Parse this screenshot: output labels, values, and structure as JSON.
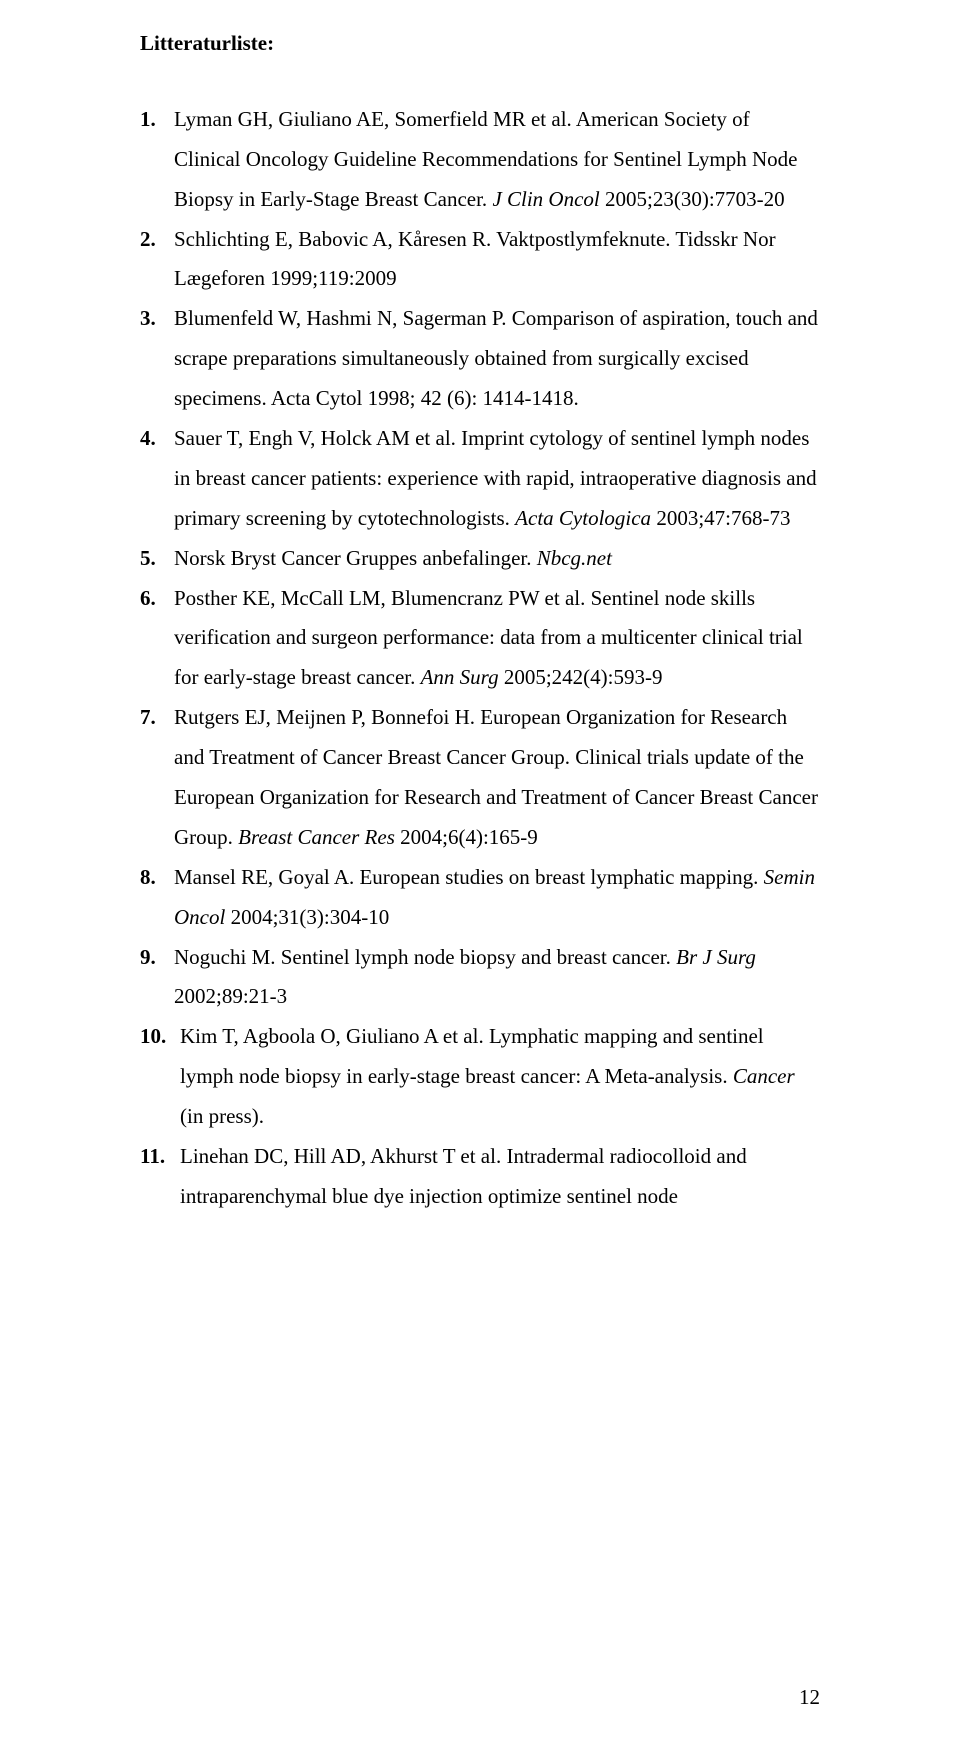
{
  "heading": "Litteraturliste:",
  "references": [
    {
      "n": "1.",
      "parts": [
        {
          "t": "Lyman GH, Giuliano AE, Somerfield MR et al. American Society of Clinical Oncology Guideline Recommendations for Sentinel Lymph Node Biopsy in Early-Stage Breast Cancer. "
        },
        {
          "t": "J Clin Oncol",
          "i": true
        },
        {
          "t": " 2005;23(30):7703-20"
        }
      ]
    },
    {
      "n": "2.",
      "parts": [
        {
          "t": "Schlichting E, Babovic A, Kåresen R. Vaktpostlymfeknute. Tidsskr Nor Lægeforen 1999;119:2009"
        }
      ]
    },
    {
      "n": "3.",
      "parts": [
        {
          "t": "Blumenfeld W, Hashmi N, Sagerman P. Comparison of aspiration, touch and scrape preparations simultaneously obtained from surgically excised specimens. Acta Cytol 1998; 42 (6): 1414-1418."
        }
      ]
    },
    {
      "n": "4.",
      "parts": [
        {
          "t": "Sauer T, Engh V, Holck AM et al. Imprint cytology of sentinel lymph nodes in breast cancer patients: experience with rapid, intraoperative diagnosis and primary screening by cytotechnologists. "
        },
        {
          "t": "Acta Cytologica",
          "i": true
        },
        {
          "t": " 2003;47:768-73"
        }
      ]
    },
    {
      "n": "5.",
      "parts": [
        {
          "t": "Norsk Bryst Cancer Gruppes anbefalinger. "
        },
        {
          "t": "Nbcg.net",
          "i": true
        }
      ]
    },
    {
      "n": "6.",
      "parts": [
        {
          "t": "Posther KE, McCall LM, Blumencranz PW et al. Sentinel node skills verification and surgeon performance: data from a multicenter clinical trial for early-stage breast cancer. "
        },
        {
          "t": "Ann Surg",
          "i": true
        },
        {
          "t": " 2005;242(4):593-9"
        }
      ]
    },
    {
      "n": "7.",
      "parts": [
        {
          "t": "Rutgers EJ, Meijnen P, Bonnefoi H. European Organization for Research and Treatment of Cancer Breast Cancer Group. Clinical trials update of the European Organization for Research and Treatment of Cancer Breast Cancer Group. "
        },
        {
          "t": "Breast Cancer Res",
          "i": true
        },
        {
          "t": " 2004;6(4):165-9"
        }
      ]
    },
    {
      "n": "8.",
      "parts": [
        {
          "t": "Mansel RE, Goyal A. European studies on breast lymphatic mapping. "
        },
        {
          "t": "Semin Oncol",
          "i": true
        },
        {
          "t": " 2004;31(3):304-10"
        }
      ]
    },
    {
      "n": "9.",
      "parts": [
        {
          "t": "Noguchi M. Sentinel lymph node biopsy and breast cancer. "
        },
        {
          "t": "Br J Surg",
          "i": true
        },
        {
          "t": " 2002;89:21-3"
        }
      ]
    },
    {
      "n": "10.",
      "parts": [
        {
          "t": "Kim T, Agboola O, Giuliano A et al. Lymphatic mapping and sentinel lymph node biopsy in early-stage breast cancer: A Meta-analysis. "
        },
        {
          "t": "Cancer",
          "i": true
        },
        {
          "t": " (in press)."
        }
      ]
    },
    {
      "n": "11.",
      "parts": [
        {
          "t": "Linehan DC, Hill AD, Akhurst T et al. Intradermal radiocolloid and intraparenchymal blue dye injection optimize sentinel node"
        }
      ]
    }
  ],
  "page_number": "12"
}
